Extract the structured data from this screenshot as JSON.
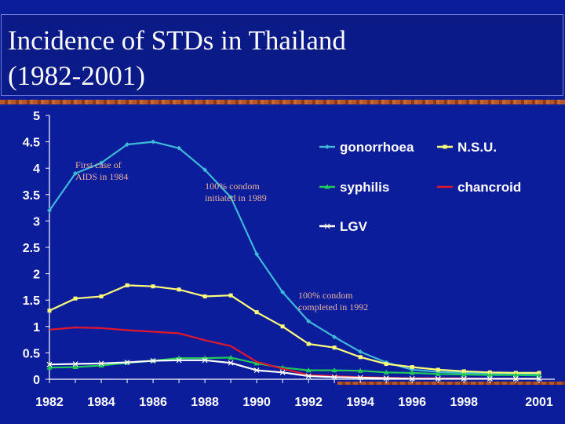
{
  "title": "Incidence  of  STDs in  Thailand\n(1982-2001)",
  "chart_data": {
    "type": "line",
    "title": "",
    "xlabel": "",
    "ylabel": "",
    "x": [
      1982,
      1983,
      1984,
      1985,
      1986,
      1987,
      1988,
      1989,
      1990,
      1991,
      1992,
      1993,
      1994,
      1995,
      1996,
      1997,
      1998,
      1999,
      2000,
      2001
    ],
    "x_tick_labels": [
      "1982",
      "1984",
      "1986",
      "1988",
      "1990",
      "1992",
      "1994",
      "1996",
      "1998",
      "2001"
    ],
    "x_tick_positions": [
      1982,
      1984,
      1986,
      1988,
      1990,
      1992,
      1994,
      1996,
      1998,
      2000.9
    ],
    "y_tick_labels": [
      "0",
      "0.5",
      "1",
      "1.5",
      "2",
      "2.5",
      "3",
      "3.5",
      "4",
      "4.5",
      "5"
    ],
    "ylim": [
      0,
      5
    ],
    "xlim": [
      1982,
      2000.9
    ],
    "grid": false,
    "legend_position": "top-right",
    "series": [
      {
        "name": "gonorrhoea",
        "color": "#3fb8d8",
        "marker": "diamond",
        "values": [
          3.2,
          3.9,
          4.1,
          4.45,
          4.5,
          4.38,
          3.97,
          3.45,
          2.37,
          1.65,
          1.1,
          0.8,
          0.52,
          0.32,
          0.18,
          0.14,
          0.12,
          0.1,
          0.09,
          0.09
        ]
      },
      {
        "name": "N.S.U.",
        "color": "#ffff7a",
        "marker": "square",
        "values": [
          1.3,
          1.53,
          1.57,
          1.78,
          1.76,
          1.7,
          1.57,
          1.59,
          1.27,
          1.0,
          0.67,
          0.6,
          0.42,
          0.29,
          0.23,
          0.18,
          0.15,
          0.13,
          0.12,
          0.12
        ]
      },
      {
        "name": "syphilis",
        "color": "#22c85a",
        "marker": "triangle",
        "values": [
          0.22,
          0.23,
          0.26,
          0.31,
          0.35,
          0.4,
          0.4,
          0.41,
          0.3,
          0.22,
          0.17,
          0.17,
          0.16,
          0.13,
          0.12,
          0.1,
          0.09,
          0.08,
          0.08,
          0.07
        ]
      },
      {
        "name": "chancroid",
        "color": "#e0182e",
        "marker": "none",
        "values": [
          0.94,
          0.98,
          0.97,
          0.93,
          0.9,
          0.87,
          0.74,
          0.63,
          0.33,
          0.2,
          0.08,
          0.06,
          0.04,
          0.03,
          0.02,
          0.02,
          0.02,
          0.01,
          0.01,
          0.01
        ]
      },
      {
        "name": "LGV",
        "color": "#ffffff",
        "marker": "x",
        "values": [
          0.28,
          0.29,
          0.3,
          0.32,
          0.35,
          0.36,
          0.36,
          0.31,
          0.17,
          0.13,
          0.06,
          0.04,
          0.03,
          0.02,
          0.01,
          0.01,
          0.01,
          0.01,
          0.01,
          0.01
        ]
      }
    ],
    "annotations": [
      {
        "text": "First case of\nAIDS in 1984",
        "x": 1983.0,
        "y": 4.0
      },
      {
        "text": "100% condom\ninitiated in 1989",
        "x": 1988.0,
        "y": 3.6
      },
      {
        "text": "100% condom\ncompleted in 1992",
        "x": 1991.6,
        "y": 1.53
      }
    ]
  }
}
